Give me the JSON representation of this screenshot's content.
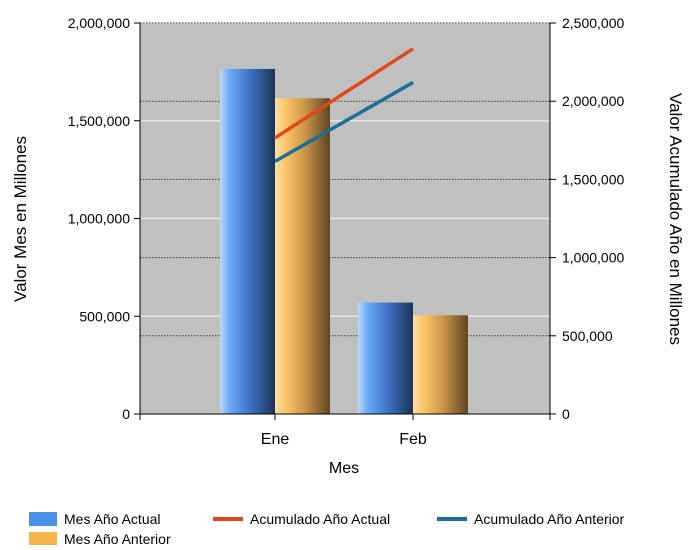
{
  "chart_data": {
    "type": "bar",
    "title": "",
    "xlabel": "Mes",
    "ylabel": "Valor Mes en Millones",
    "y2label": "Valor Acumulado Año en Millones",
    "categories": [
      "Ene",
      "Feb"
    ],
    "ylim": [
      0,
      2000000
    ],
    "y2lim": [
      0,
      2500000
    ],
    "yticks": [
      {
        "value": 0,
        "label": "0"
      },
      {
        "value": 500000,
        "label": "500,000"
      },
      {
        "value": 1000000,
        "label": "1,000,000"
      },
      {
        "value": 1500000,
        "label": "1,500,000"
      },
      {
        "value": 2000000,
        "label": "2,000,000"
      }
    ],
    "y2ticks": [
      {
        "value": 0,
        "label": "0"
      },
      {
        "value": 500000,
        "label": "500,000"
      },
      {
        "value": 1000000,
        "label": "1,000,000"
      },
      {
        "value": 1500000,
        "label": "1,500,000"
      },
      {
        "value": 2000000,
        "label": "2,000,000"
      },
      {
        "value": 2500000,
        "label": "2,500,000"
      }
    ],
    "bar_series": [
      {
        "name": "Mes Año Actual",
        "axis": "left",
        "values": [
          1765000,
          570000
        ],
        "color": "#4a90e8"
      },
      {
        "name": "Mes Año Anterior",
        "axis": "left",
        "values": [
          1615000,
          505000
        ],
        "color": "#f7b548"
      }
    ],
    "line_series": [
      {
        "name": "Acumulado Año Actual",
        "axis": "right",
        "values": [
          1765000,
          2335000
        ],
        "color": "#e0481a"
      },
      {
        "name": "Acumulado Año Anterior",
        "axis": "right",
        "values": [
          1615000,
          2120000
        ],
        "color": "#1a6e99"
      }
    ],
    "grid": true,
    "plot_background": "#c0c0c0",
    "legend_position": "bottom"
  }
}
